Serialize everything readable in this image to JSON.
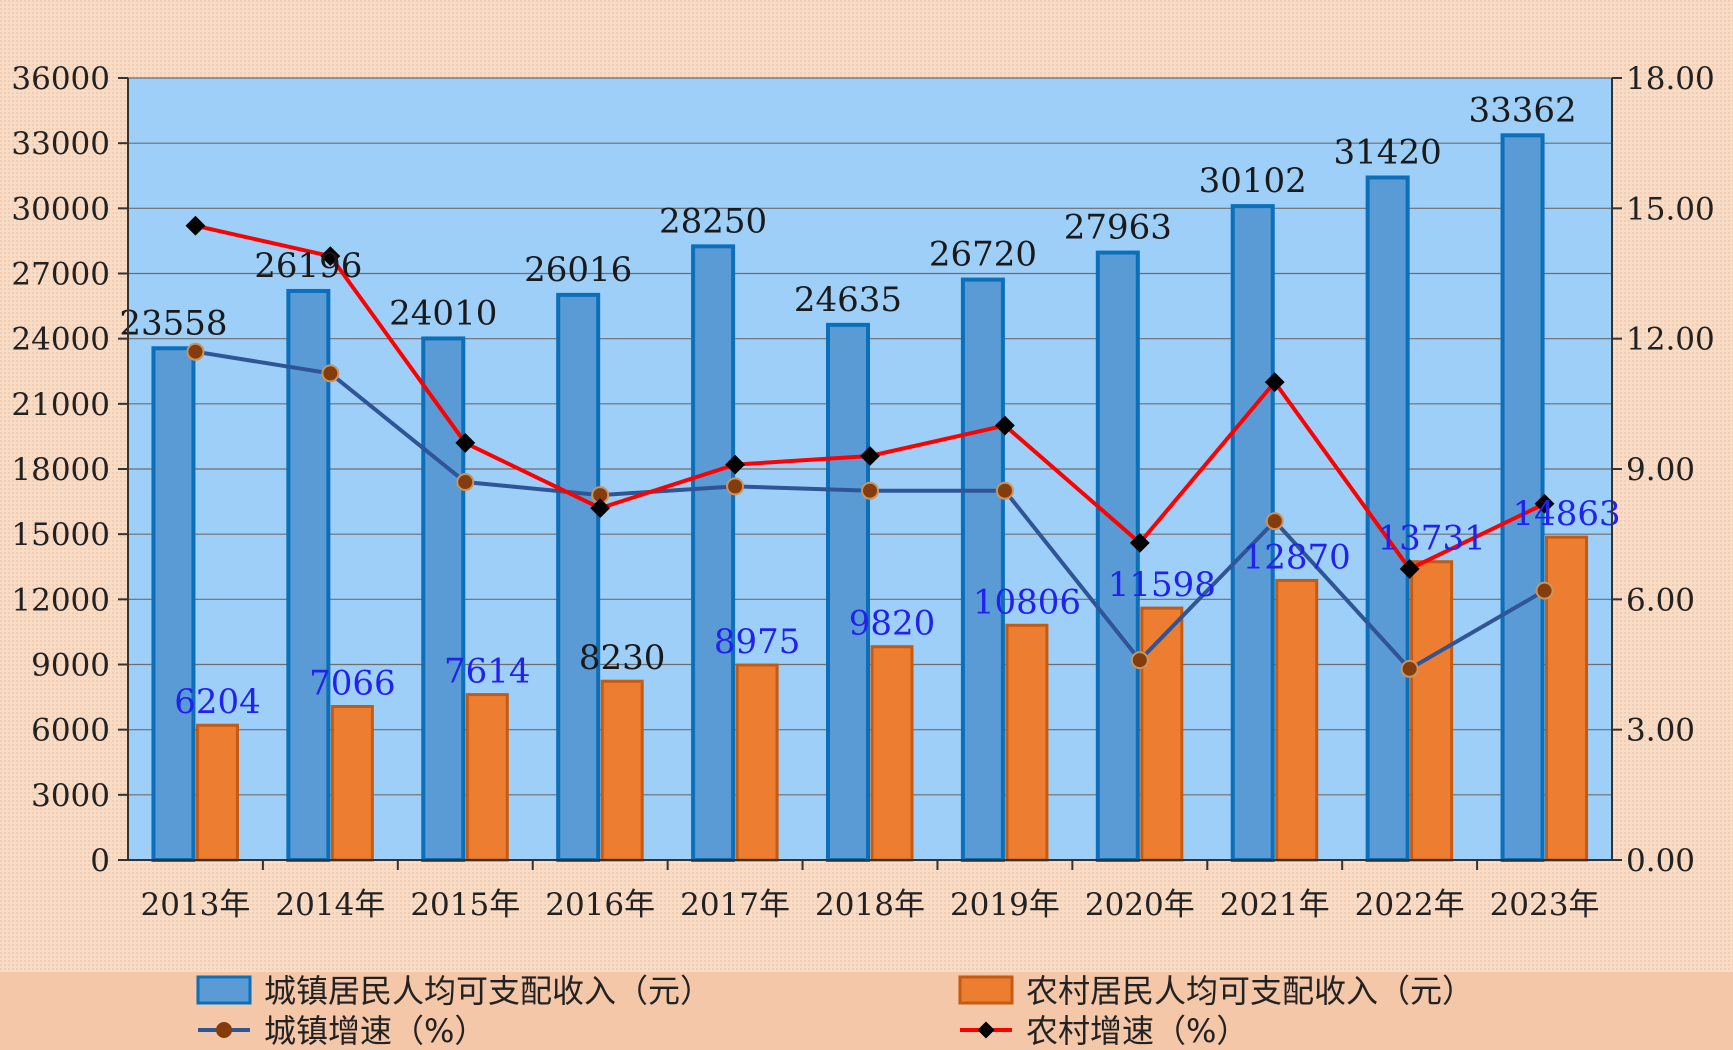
{
  "chart_data": {
    "type": "bar",
    "categories": [
      "2013年",
      "2014年",
      "2015年",
      "2016年",
      "2017年",
      "2018年",
      "2019年",
      "2020年",
      "2021年",
      "2022年",
      "2023年"
    ],
    "series": [
      {
        "name": "城镇居民人均可支配收入（元）",
        "kind": "bar",
        "axis": "left",
        "values": [
          23558,
          26196,
          24010,
          26016,
          28250,
          24635,
          26720,
          27963,
          30102,
          31420,
          33362
        ],
        "labels": [
          "23558",
          "26196",
          "24010",
          "26016",
          "28250",
          "24635",
          "26720",
          "27963",
          "30102",
          "31420",
          "33362"
        ]
      },
      {
        "name": "农村居民人均可支配收入（元）",
        "kind": "bar",
        "axis": "left",
        "values": [
          6204,
          7066,
          7614,
          8230,
          8975,
          9820,
          10806,
          11598,
          12870,
          13731,
          14863
        ],
        "labels": [
          "6204",
          "7066",
          "7614",
          "8230",
          "8975",
          "9820",
          "10806",
          "11598",
          "12870",
          "13731",
          "14863"
        ]
      },
      {
        "name": "城镇增速（%）",
        "kind": "line",
        "axis": "right",
        "values": [
          11.7,
          11.2,
          8.7,
          8.4,
          8.6,
          8.5,
          8.5,
          4.6,
          7.8,
          4.4,
          6.2
        ]
      },
      {
        "name": "农村增速（%）",
        "kind": "line",
        "axis": "right",
        "values": [
          14.6,
          13.9,
          9.6,
          8.1,
          9.1,
          9.3,
          10.0,
          7.3,
          11.0,
          6.7,
          8.2
        ]
      }
    ],
    "ylim_left": [
      0,
      36000
    ],
    "yticks_left": [
      "0",
      "3000",
      "6000",
      "9000",
      "12000",
      "15000",
      "18000",
      "21000",
      "24000",
      "27000",
      "30000",
      "33000",
      "36000"
    ],
    "ylim_right": [
      0,
      18
    ],
    "yticks_right": [
      "0.00",
      "3.00",
      "6.00",
      "9.00",
      "12.00",
      "15.00",
      "18.00"
    ],
    "grid": true,
    "legend_position": "bottom",
    "colors": {
      "page_bg": "#F9DCC6",
      "plot_bg": "#9ECFF8",
      "urban_bar_fill": "#5B9BD5",
      "urban_bar_edge": "#0B6FB9",
      "rural_bar_fill": "#ED7D31",
      "rural_bar_edge": "#C55A11",
      "urban_line": "#2F5597",
      "urban_marker": "#843C0C",
      "rural_line": "#FF0000",
      "rural_marker": "#000000",
      "urban_label": "#1A1A1A",
      "rural_label": "#2222EE",
      "grid": "#6E6E6E",
      "axis": "#333333"
    }
  }
}
